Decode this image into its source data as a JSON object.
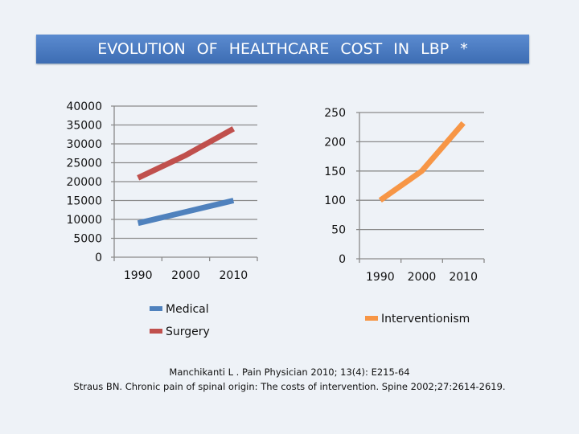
{
  "title": "EVOLUTION OF HEALTHCARE COST IN LBP *",
  "chart_data": [
    {
      "type": "line",
      "categories": [
        "1990",
        "2000",
        "2010"
      ],
      "ylim": [
        0,
        40000
      ],
      "yticks": [
        "0",
        "5000",
        "10000",
        "15000",
        "20000",
        "25000",
        "30000",
        "35000",
        "40000"
      ],
      "grid": true,
      "legend": "bottom",
      "series": [
        {
          "name": "Medical",
          "values": [
            9000,
            12000,
            15000
          ],
          "color": "#4f81bd"
        },
        {
          "name": "Surgery",
          "values": [
            21000,
            27000,
            34000
          ],
          "color": "#c0504d"
        }
      ]
    },
    {
      "type": "line",
      "categories": [
        "1990",
        "2000",
        "2010"
      ],
      "ylim": [
        0,
        250
      ],
      "yticks": [
        "0",
        "50",
        "100",
        "150",
        "200",
        "250"
      ],
      "grid": true,
      "legend": "bottom",
      "series": [
        {
          "name": "Interventionism",
          "values": [
            100,
            150,
            232
          ],
          "color": "#f79646"
        }
      ]
    }
  ],
  "references": [
    "Manchikanti L . Pain Physician 2010; 13(4): E215-64",
    "Straus BN. Chronic pain of spinal origin: The costs of intervention. Spine 2002;27:2614-2619."
  ]
}
